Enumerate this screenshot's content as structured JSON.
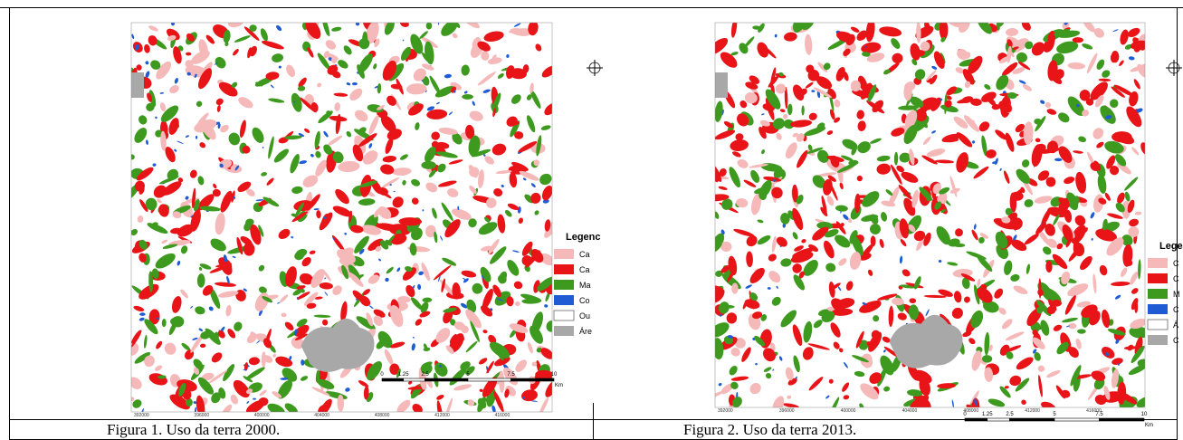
{
  "figures": [
    {
      "caption": "Figura 1. Uso da terra 2000.",
      "legend_title": "Legenc",
      "legend_items": [
        "Ca",
        "Ca",
        "Ma",
        "Co",
        "Ou",
        "Áre"
      ],
      "x_coords": [
        "392000",
        "396000",
        "400000",
        "404000",
        "408000",
        "412000",
        "416000"
      ],
      "scale_labels": [
        "0",
        "1.25",
        "2.5",
        "5",
        "7.5",
        "10",
        "Km"
      ]
    },
    {
      "caption": "Figura 2. Uso da terra 2013.",
      "legend_title": "Leger",
      "legend_items": [
        "C",
        "C",
        "M",
        "C",
        "Á",
        "C"
      ],
      "x_coords": [
        "392000",
        "396000",
        "400000",
        "404000",
        "408000",
        "412000",
        "416000"
      ],
      "scale_labels": [
        "0",
        "1.25",
        "2.5",
        "5",
        "7.5",
        "10",
        "Km"
      ]
    }
  ]
}
